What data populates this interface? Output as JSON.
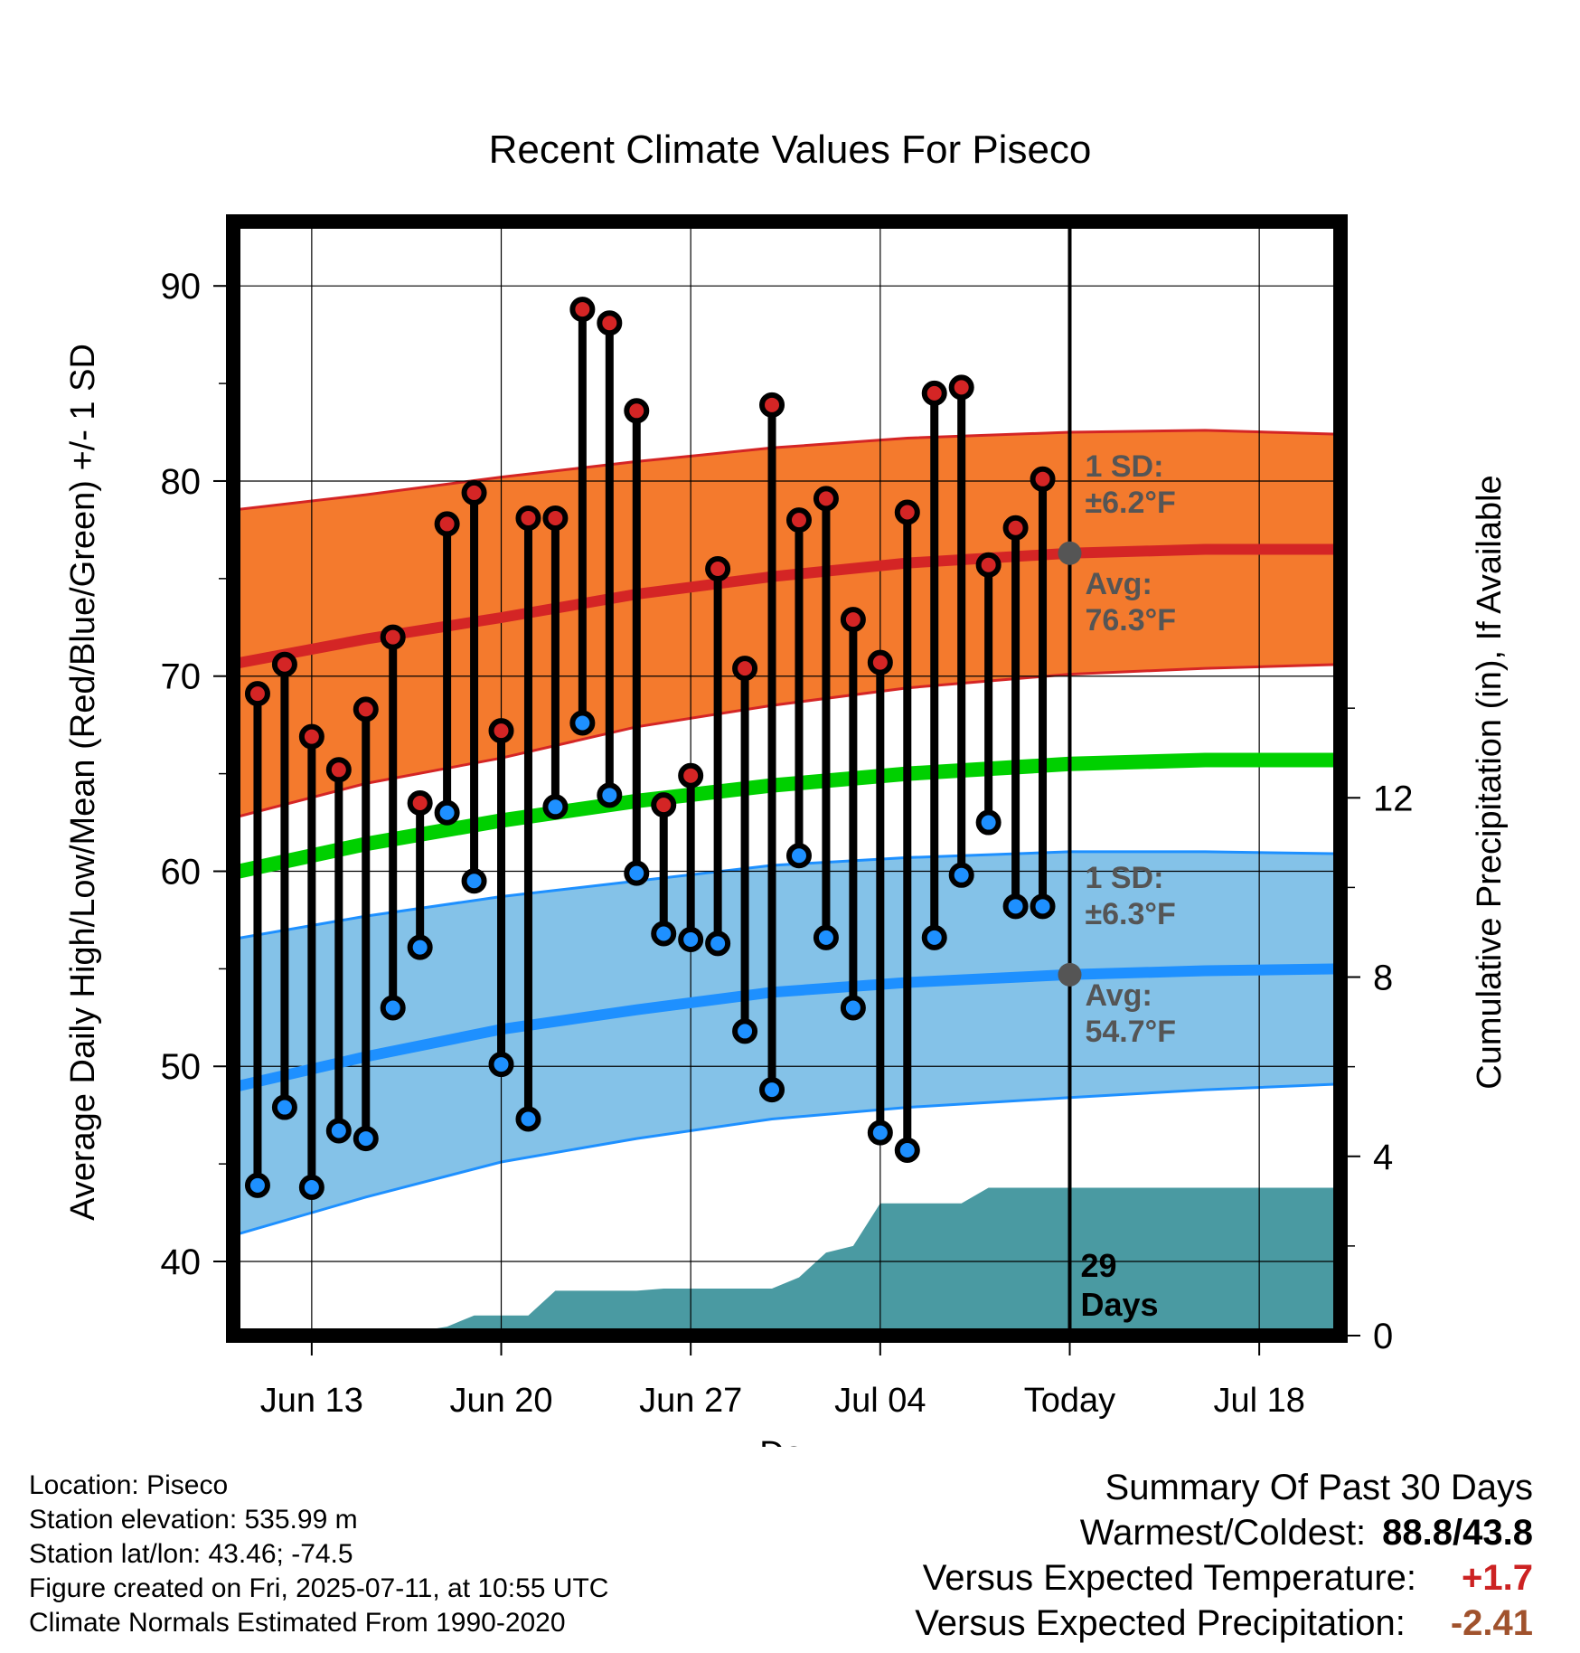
{
  "chart_data": {
    "type": "line",
    "title": "Recent Climate Values For Piseco",
    "xlabel": "Day",
    "ylabel": "Average Daily High/Low/Mean (Red/Blue/Green) +/- 1 SD",
    "y2label": "Cumulative Precipitation (in), If Available",
    "xticks": [
      "Jun 13",
      "Jun 20",
      "Jun 27",
      "Jul 04",
      "Today",
      "Jul 18"
    ],
    "ylim": [
      36.2,
      93.3
    ],
    "yticks": [
      40,
      50,
      60,
      70,
      80,
      90
    ],
    "y2ticks": [
      0,
      4,
      8,
      12
    ],
    "today_label": "29\nDays",
    "high_band_label_sd": "1 SD:",
    "high_band_label_sd_value": "±6.2°F",
    "high_band_label_avg": "Avg:",
    "high_band_label_avg_value": "76.3°F",
    "low_band_label_sd": "1 SD:",
    "low_band_label_sd_value": "±6.3°F",
    "low_band_label_avg": "Avg:",
    "low_band_label_avg_value": "54.7°F",
    "days": [
      {
        "date": "2025-06-11",
        "high": 69.1,
        "low": 43.9
      },
      {
        "date": "2025-06-12",
        "high": 70.6,
        "low": 47.9
      },
      {
        "date": "2025-06-13",
        "high": 66.9,
        "low": 43.8
      },
      {
        "date": "2025-06-14",
        "high": 65.2,
        "low": 46.7
      },
      {
        "date": "2025-06-15",
        "high": 68.3,
        "low": 46.3
      },
      {
        "date": "2025-06-16",
        "high": 72.0,
        "low": 53.0
      },
      {
        "date": "2025-06-17",
        "high": 63.5,
        "low": 56.1
      },
      {
        "date": "2025-06-18",
        "high": 77.8,
        "low": 63.0
      },
      {
        "date": "2025-06-19",
        "high": 79.4,
        "low": 59.5
      },
      {
        "date": "2025-06-20",
        "high": 67.2,
        "low": 50.1
      },
      {
        "date": "2025-06-21",
        "high": 78.1,
        "low": 47.3
      },
      {
        "date": "2025-06-22",
        "high": 78.1,
        "low": 63.3
      },
      {
        "date": "2025-06-23",
        "high": 88.8,
        "low": 67.6
      },
      {
        "date": "2025-06-24",
        "high": 88.1,
        "low": 63.9
      },
      {
        "date": "2025-06-25",
        "high": 83.6,
        "low": 59.9
      },
      {
        "date": "2025-06-26",
        "high": 63.4,
        "low": 56.8
      },
      {
        "date": "2025-06-27",
        "high": 64.9,
        "low": 56.5
      },
      {
        "date": "2025-06-28",
        "high": 75.5,
        "low": 56.3
      },
      {
        "date": "2025-06-29",
        "high": 70.4,
        "low": 51.8
      },
      {
        "date": "2025-06-30",
        "high": 83.9,
        "low": 48.8
      },
      {
        "date": "2025-07-01",
        "high": 78.0,
        "low": 60.8
      },
      {
        "date": "2025-07-02",
        "high": 79.1,
        "low": 56.6
      },
      {
        "date": "2025-07-03",
        "high": 72.9,
        "low": 53.0
      },
      {
        "date": "2025-07-04",
        "high": 70.7,
        "low": 46.6
      },
      {
        "date": "2025-07-05",
        "high": 78.4,
        "low": 45.7
      },
      {
        "date": "2025-07-06",
        "high": 84.5,
        "low": 56.6
      },
      {
        "date": "2025-07-07",
        "high": 84.8,
        "low": 59.8
      },
      {
        "date": "2025-07-08",
        "high": 75.7,
        "low": 62.5
      },
      {
        "date": "2025-07-09",
        "high": 77.6,
        "low": 58.2
      },
      {
        "date": "2025-07-10",
        "high": 80.1,
        "low": 58.2
      }
    ],
    "normals": [
      {
        "date": "2025-06-10",
        "high_avg": 70.6,
        "low_avg": 48.9,
        "mean_avg": 59.9,
        "high_sd": 7.9,
        "low_sd": 7.6
      },
      {
        "date": "2025-06-15",
        "high_avg": 71.9,
        "low_avg": 50.5,
        "mean_avg": 61.4,
        "high_sd": 7.4,
        "low_sd": 7.2
      },
      {
        "date": "2025-06-20",
        "high_avg": 73.0,
        "low_avg": 51.9,
        "mean_avg": 62.6,
        "high_sd": 7.2,
        "low_sd": 6.8
      },
      {
        "date": "2025-06-25",
        "high_avg": 74.2,
        "low_avg": 52.9,
        "mean_avg": 63.6,
        "high_sd": 6.8,
        "low_sd": 6.6
      },
      {
        "date": "2025-06-30",
        "high_avg": 75.1,
        "low_avg": 53.8,
        "mean_avg": 64.4,
        "high_sd": 6.6,
        "low_sd": 6.5
      },
      {
        "date": "2025-07-05",
        "high_avg": 75.8,
        "low_avg": 54.3,
        "mean_avg": 65.0,
        "high_sd": 6.4,
        "low_sd": 6.4
      },
      {
        "date": "2025-07-11",
        "high_avg": 76.3,
        "low_avg": 54.7,
        "mean_avg": 65.5,
        "high_sd": 6.2,
        "low_sd": 6.3
      },
      {
        "date": "2025-07-16",
        "high_avg": 76.5,
        "low_avg": 54.9,
        "mean_avg": 65.7,
        "high_sd": 6.1,
        "low_sd": 6.1
      },
      {
        "date": "2025-07-21",
        "high_avg": 76.5,
        "low_avg": 55.0,
        "mean_avg": 65.7,
        "high_sd": 5.9,
        "low_sd": 5.9
      }
    ],
    "precip": [
      {
        "date": "2025-06-16",
        "value": 0.0
      },
      {
        "date": "2025-06-17",
        "value": 0.1
      },
      {
        "date": "2025-06-18",
        "value": 0.2
      },
      {
        "date": "2025-06-19",
        "value": 0.45
      },
      {
        "date": "2025-06-21",
        "value": 0.45
      },
      {
        "date": "2025-06-22",
        "value": 1.0
      },
      {
        "date": "2025-06-25",
        "value": 1.0
      },
      {
        "date": "2025-06-26",
        "value": 1.05
      },
      {
        "date": "2025-06-30",
        "value": 1.05
      },
      {
        "date": "2025-07-01",
        "value": 1.3
      },
      {
        "date": "2025-07-02",
        "value": 1.85
      },
      {
        "date": "2025-07-03",
        "value": 2.0
      },
      {
        "date": "2025-07-04",
        "value": 2.95
      },
      {
        "date": "2025-07-07",
        "value": 2.95
      },
      {
        "date": "2025-07-08",
        "value": 3.3
      },
      {
        "date": "2025-07-21",
        "value": 3.3
      }
    ],
    "colors": {
      "high_band": "#f47a2d",
      "high_avg": "#d42525",
      "low_band": "#84c2e8",
      "low_avg": "#1e90ff",
      "low_sd_line": "#1e90ff",
      "mean": "#00d000",
      "precip": "#4a9aa2",
      "high_marker": "#d42525",
      "low_marker": "#1e90ff",
      "label_grey": "#555555"
    }
  },
  "info": {
    "location": "Location: Piseco",
    "elevation": "Station elevation: 535.99 m",
    "latlon": "Station lat/lon: 43.46; -74.5",
    "created": "Figure created on Fri, 2025-07-11, at 10:55 UTC",
    "normals": "Climate Normals Estimated From 1990-2020"
  },
  "summary": {
    "title": "Summary Of Past 30 Days",
    "warm_cold_label": "Warmest/Coldest:",
    "warm_cold_value": "88.8/43.8",
    "temp_label": "Versus Expected Temperature:",
    "temp_value": "+1.7",
    "temp_color": "#cc2222",
    "precip_label": "Versus Expected Precipitation:",
    "precip_value": "-2.41",
    "precip_color": "#a0522d"
  }
}
